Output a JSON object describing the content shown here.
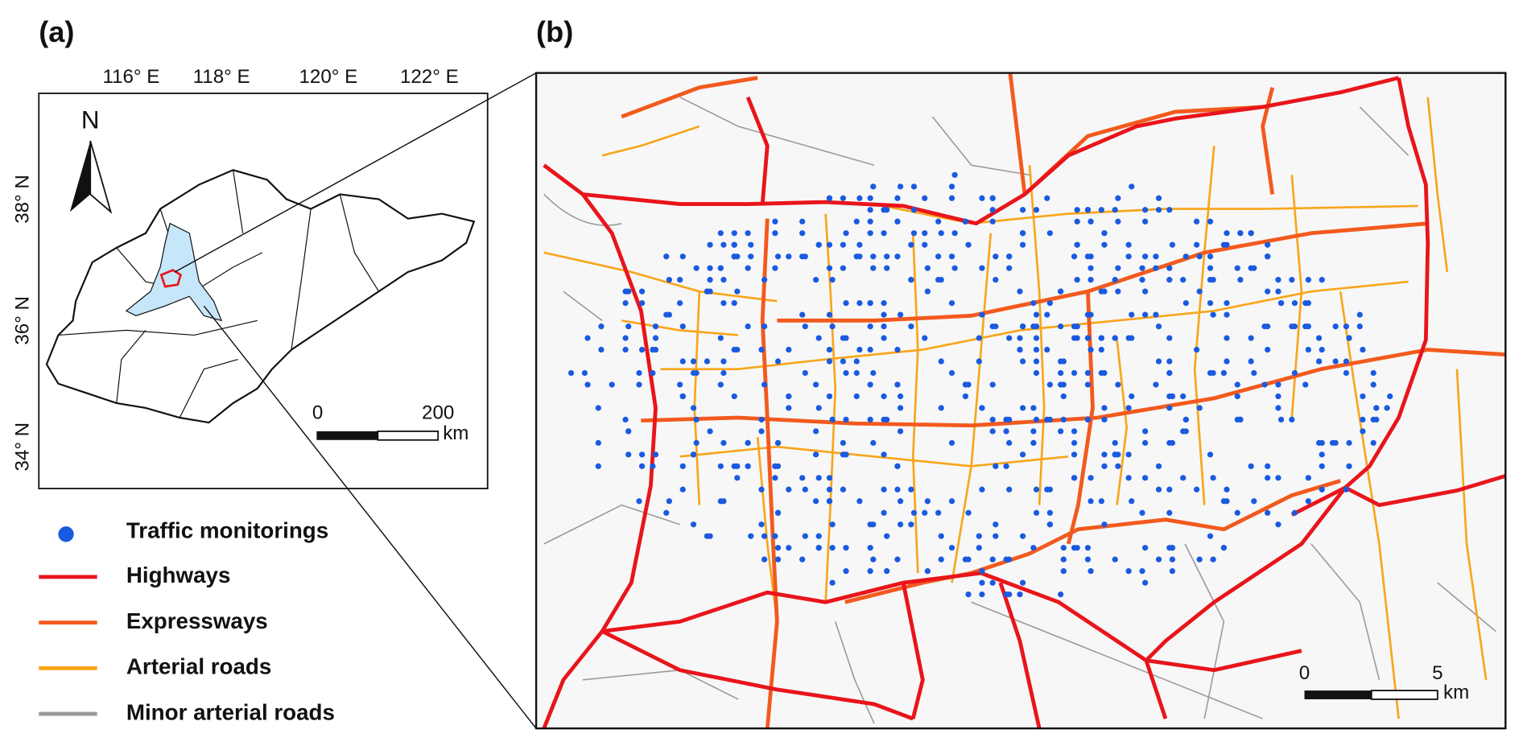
{
  "panel_a": {
    "label": "(a)",
    "lon_ticks": [
      "116° E",
      "118° E",
      "120° E",
      "122° E"
    ],
    "lat_ticks": [
      "38° N",
      "36° N",
      "34° N"
    ],
    "north": "N",
    "scale_bar": {
      "start": "0",
      "end": "200",
      "unit": "km"
    }
  },
  "panel_b": {
    "label": "(b)",
    "scale_bar": {
      "start": "0",
      "end": "5",
      "unit": "km"
    }
  },
  "legend": [
    "Traffic monitorings",
    "Highways",
    "Expressways",
    "Arterial roads",
    "Minor arterial roads"
  ]
}
